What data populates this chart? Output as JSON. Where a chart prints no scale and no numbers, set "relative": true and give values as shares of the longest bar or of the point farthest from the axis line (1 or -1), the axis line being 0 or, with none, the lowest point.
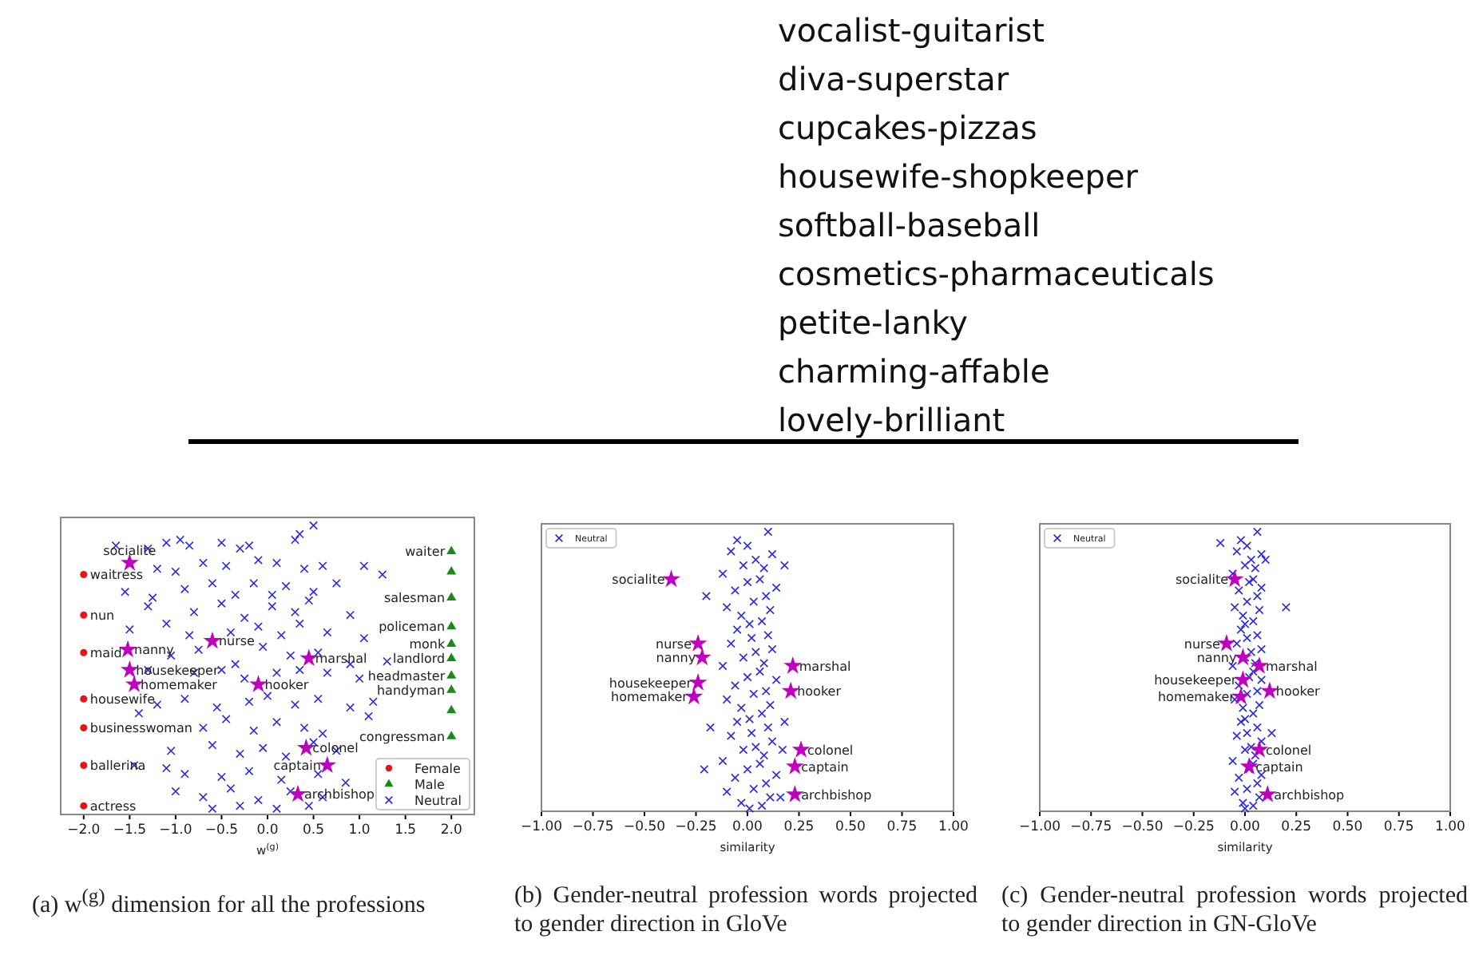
{
  "chart_data": [
    {
      "type": "other",
      "annotations": [
        "vocalist-guitarist",
        "diva-superstar",
        "cupcakes-pizzas",
        "housewife-shopkeeper",
        "softball-baseball",
        "cosmetics-pharmaceuticals",
        "petite-lanky",
        "charming-affable",
        "lovely-brilliant"
      ]
    },
    {
      "type": "scatter",
      "relative": true,
      "xlabel": "w$^{(g)}$",
      "xlim": [
        -2.25,
        2.25
      ],
      "xticks": [
        {
          "value": -2,
          "label": "−2.0"
        },
        {
          "value": -1.5,
          "label": "−1.5"
        },
        {
          "value": -1,
          "label": "−1.0"
        },
        {
          "value": -0.5,
          "label": "−0.5"
        },
        {
          "value": 0,
          "label": "0.0"
        },
        {
          "value": 0.5,
          "label": "0.5"
        },
        {
          "value": 1,
          "label": "1.0"
        },
        {
          "value": 1.5,
          "label": "1.5"
        },
        {
          "value": 2,
          "label": "2.0"
        }
      ],
      "legend": "bottom right",
      "series": [
        {
          "name": "Female",
          "color": "#e8141a",
          "marker": "circle",
          "x": [
            -2,
            -2,
            -2,
            -2,
            -2,
            -2,
            -2
          ],
          "values": [
            0.83,
            0.69,
            0.56,
            0.4,
            0.3,
            0.17,
            0.03
          ]
        },
        {
          "name": "Male",
          "color": "#1a8a1a",
          "marker": "triangle",
          "x": [
            2,
            2,
            2,
            2,
            2,
            2,
            2,
            2,
            2,
            2
          ],
          "values": [
            0.91,
            0.84,
            0.75,
            0.65,
            0.59,
            0.54,
            0.48,
            0.43,
            0.36,
            0.27
          ]
        },
        {
          "name": "Neutral",
          "color": "#2a2ae0",
          "marker": "cross",
          "x": [
            -1.65,
            -1.3,
            -1.1,
            -0.95,
            -0.85,
            -0.5,
            -0.3,
            -0.2,
            0.35,
            0.5,
            0.3,
            -1.2,
            -1.0,
            -0.7,
            -0.45,
            -0.1,
            0.1,
            0.4,
            0.6,
            1.05,
            1.25,
            -1.55,
            -1.25,
            -0.9,
            -0.6,
            -0.35,
            -0.15,
            0.05,
            0.2,
            0.5,
            0.75,
            -1.3,
            -0.8,
            -0.5,
            -0.25,
            0.05,
            0.3,
            0.45,
            0.9,
            -1.5,
            -1.1,
            -0.85,
            -0.4,
            -0.1,
            0.15,
            0.35,
            0.65,
            1.05,
            -1.05,
            -0.75,
            -0.35,
            -0.05,
            0.25,
            0.55,
            0.9,
            1.3,
            -1.3,
            -0.8,
            -0.5,
            -0.25,
            0.1,
            0.35,
            0.65,
            1.0,
            -1.2,
            -0.9,
            -0.55,
            -0.2,
            0.0,
            0.3,
            0.55,
            0.9,
            1.15,
            -1.4,
            -0.7,
            -0.45,
            -0.15,
            0.1,
            0.4,
            0.6,
            1.1,
            -1.05,
            -0.6,
            -0.3,
            -0.05,
            0.2,
            0.5,
            0.75,
            -1.45,
            -1.1,
            -0.9,
            -0.5,
            -0.2,
            0.15,
            0.55,
            0.85,
            -1.0,
            -0.7,
            -0.4,
            -0.1,
            0.25,
            0.6,
            -0.6,
            -0.3,
            0.1,
            0.45
          ],
          "values": [
            0.93,
            0.92,
            0.94,
            0.95,
            0.93,
            0.94,
            0.92,
            0.93,
            0.97,
            1,
            0.95,
            0.85,
            0.84,
            0.87,
            0.86,
            0.88,
            0.87,
            0.85,
            0.86,
            0.86,
            0.83,
            0.77,
            0.75,
            0.78,
            0.8,
            0.76,
            0.8,
            0.76,
            0.79,
            0.77,
            0.8,
            0.72,
            0.7,
            0.73,
            0.68,
            0.72,
            0.7,
            0.74,
            0.69,
            0.64,
            0.66,
            0.62,
            0.63,
            0.65,
            0.62,
            0.66,
            0.63,
            0.61,
            0.55,
            0.57,
            0.52,
            0.58,
            0.55,
            0.56,
            0.52,
            0.53,
            0.5,
            0.49,
            0.5,
            0.47,
            0.49,
            0.5,
            0.49,
            0.47,
            0.38,
            0.4,
            0.37,
            0.39,
            0.41,
            0.38,
            0.4,
            0.37,
            0.39,
            0.35,
            0.3,
            0.33,
            0.29,
            0.32,
            0.3,
            0.28,
            0.34,
            0.22,
            0.24,
            0.21,
            0.23,
            0.2,
            0.25,
            0.22,
            0.17,
            0.16,
            0.14,
            0.13,
            0.15,
            0.12,
            0.14,
            0.11,
            0.08,
            0.06,
            0.09,
            0.05,
            0.08,
            0.06,
            0.02,
            0.03,
            0.02,
            0.03
          ]
        },
        {
          "color": "#bf00bf",
          "marker": "star",
          "x": [
            -1.5,
            -1.52,
            -0.6,
            -1.5,
            -1.45,
            -0.1,
            0.45,
            0.42,
            0.65,
            0.33
          ],
          "values": [
            0.87,
            0.57,
            0.6,
            0.5,
            0.45,
            0.45,
            0.54,
            0.23,
            0.17,
            0.07
          ]
        }
      ],
      "annotations": [
        {
          "text": "waitress",
          "x": -2,
          "y": 0.83
        },
        {
          "text": "nun",
          "x": -2,
          "y": 0.69
        },
        {
          "text": "maid",
          "x": -2,
          "y": 0.56
        },
        {
          "text": "housewife",
          "x": -2,
          "y": 0.4
        },
        {
          "text": "businesswoman",
          "x": -2,
          "y": 0.3
        },
        {
          "text": "ballerina",
          "x": -2,
          "y": 0.17
        },
        {
          "text": "actress",
          "x": -2,
          "y": 0.03
        },
        {
          "text": "waiter",
          "x": 2,
          "y": 0.91
        },
        {
          "text": "salesman",
          "x": 2,
          "y": 0.75
        },
        {
          "text": "policeman",
          "x": 2,
          "y": 0.65
        },
        {
          "text": "monk",
          "x": 2,
          "y": 0.59
        },
        {
          "text": "landlord",
          "x": 2,
          "y": 0.54
        },
        {
          "text": "headmaster",
          "x": 2,
          "y": 0.48
        },
        {
          "text": "handyman",
          "x": 2,
          "y": 0.43
        },
        {
          "text": "congressman",
          "x": 2,
          "y": 0.27
        },
        {
          "text": "socialite",
          "x": -1.5,
          "y": 0.87
        },
        {
          "text": "nanny",
          "x": -1.52,
          "y": 0.57
        },
        {
          "text": "nurse",
          "x": -0.6,
          "y": 0.6
        },
        {
          "text": "housekeeper",
          "x": -1.5,
          "y": 0.5
        },
        {
          "text": "homemaker",
          "x": -1.45,
          "y": 0.45
        },
        {
          "text": "hooker",
          "x": -0.1,
          "y": 0.45
        },
        {
          "text": "marshal",
          "x": 0.45,
          "y": 0.54
        },
        {
          "text": "colonel",
          "x": 0.42,
          "y": 0.23
        },
        {
          "text": "captain",
          "x": 0.65,
          "y": 0.17
        },
        {
          "text": "archbishop",
          "x": 0.33,
          "y": 0.07
        },
        "(a) w$^{(g)}$ dimension for all the professions"
      ]
    },
    {
      "type": "scatter",
      "relative": true,
      "xlabel": "similarity",
      "xlim": [
        -1,
        1
      ],
      "xticks": [
        {
          "value": -1,
          "label": "−1.00"
        },
        {
          "value": -0.75,
          "label": "−0.75"
        },
        {
          "value": -0.5,
          "label": "−0.50"
        },
        {
          "value": -0.25,
          "label": "−0.25"
        },
        {
          "value": 0,
          "label": "0.00"
        },
        {
          "value": 0.25,
          "label": "0.25"
        },
        {
          "value": 0.5,
          "label": "0.50"
        },
        {
          "value": 0.75,
          "label": "0.75"
        },
        {
          "value": 1,
          "label": "1.00"
        }
      ],
      "legend": "top left",
      "series": [
        {
          "name": "Neutral",
          "color": "#2a2ae0",
          "marker": "cross",
          "x": [
            -0.05,
            0.1,
            0.0,
            -0.08,
            0.12,
            0.04,
            -0.02,
            0.08,
            -0.12,
            0.06,
            0.0,
            0.14,
            -0.06,
            0.09,
            0.03,
            -0.1,
            0.11,
            -0.03,
            0.07,
            0.01,
            -0.05,
            0.1,
            0.02,
            -0.08,
            0.12,
            0.04,
            -0.02,
            0.08,
            -0.12,
            0.06,
            0.0,
            0.14,
            -0.06,
            0.09,
            0.03,
            -0.1,
            0.11,
            -0.03,
            0.07,
            0.01,
            -0.05,
            0.1,
            0.02,
            -0.08,
            0.12,
            0.04,
            -0.02,
            0.08,
            -0.12,
            0.06,
            0.0,
            0.14,
            -0.06,
            0.09,
            0.03,
            -0.1,
            0.11,
            -0.03,
            0.07,
            0.01,
            -0.2,
            -0.18,
            -0.21,
            0.18,
            0.18,
            0.17,
            0.16
          ],
          "values": [
            0.97,
            1,
            0.95,
            0.93,
            0.92,
            0.9,
            0.88,
            0.87,
            0.85,
            0.83,
            0.82,
            0.8,
            0.79,
            0.77,
            0.75,
            0.73,
            0.72,
            0.7,
            0.68,
            0.67,
            0.65,
            0.63,
            0.62,
            0.6,
            0.58,
            0.57,
            0.55,
            0.53,
            0.52,
            0.5,
            0.48,
            0.47,
            0.45,
            0.43,
            0.42,
            0.4,
            0.38,
            0.37,
            0.35,
            0.33,
            0.32,
            0.3,
            0.28,
            0.27,
            0.25,
            0.23,
            0.22,
            0.2,
            0.18,
            0.17,
            0.15,
            0.13,
            0.12,
            0.1,
            0.08,
            0.07,
            0.05,
            0.03,
            0.02,
            0.01,
            0.77,
            0.3,
            0.15,
            0.88,
            0.32,
            0.22,
            0.05
          ]
        },
        {
          "color": "#bf00bf",
          "marker": "star",
          "x": [
            -0.37,
            -0.24,
            -0.22,
            -0.24,
            -0.26,
            0.22,
            0.21,
            0.26,
            0.23,
            0.23
          ],
          "values": [
            0.83,
            0.6,
            0.55,
            0.46,
            0.41,
            0.52,
            0.43,
            0.22,
            0.16,
            0.06
          ]
        }
      ],
      "annotations": [
        {
          "text": "socialite",
          "x": -0.37,
          "y": 0.83
        },
        {
          "text": "nurse",
          "x": -0.24,
          "y": 0.6
        },
        {
          "text": "nanny",
          "x": -0.22,
          "y": 0.55
        },
        {
          "text": "housekeeper",
          "x": -0.24,
          "y": 0.46
        },
        {
          "text": "homemaker",
          "x": -0.26,
          "y": 0.41
        },
        {
          "text": "marshal",
          "x": 0.22,
          "y": 0.52
        },
        {
          "text": "hooker",
          "x": 0.21,
          "y": 0.43
        },
        {
          "text": "colonel",
          "x": 0.26,
          "y": 0.22
        },
        {
          "text": "captain",
          "x": 0.23,
          "y": 0.16
        },
        {
          "text": "archbishop",
          "x": 0.23,
          "y": 0.06
        },
        "(b) Gender-neutral profession words projected to gender direction in GloVe"
      ]
    },
    {
      "type": "scatter",
      "relative": true,
      "xlabel": "similarity",
      "xlim": [
        -1,
        1
      ],
      "xticks": [
        {
          "value": -1,
          "label": "−1.00"
        },
        {
          "value": -0.75,
          "label": "−0.75"
        },
        {
          "value": -0.5,
          "label": "−0.50"
        },
        {
          "value": -0.25,
          "label": "−0.25"
        },
        {
          "value": 0,
          "label": "0.00"
        },
        {
          "value": 0.25,
          "label": "0.25"
        },
        {
          "value": 0.5,
          "label": "0.50"
        },
        {
          "value": 0.75,
          "label": "0.75"
        },
        {
          "value": 1,
          "label": "1.00"
        }
      ],
      "legend": "top left",
      "series": [
        {
          "name": "Neutral",
          "color": "#2a2ae0",
          "marker": "cross",
          "x": [
            -0.02,
            0.06,
            0.01,
            -0.04,
            0.08,
            0.03,
            0.0,
            0.05,
            -0.06,
            0.04,
            0.02,
            0.08,
            -0.03,
            0.06,
            0.01,
            -0.05,
            0.07,
            -0.01,
            0.04,
            0.0,
            -0.02,
            0.06,
            0.01,
            -0.04,
            0.08,
            0.03,
            0.0,
            0.05,
            -0.06,
            0.04,
            0.02,
            0.08,
            -0.03,
            0.06,
            0.01,
            -0.05,
            0.07,
            -0.01,
            0.04,
            0.0,
            -0.02,
            0.06,
            0.01,
            -0.04,
            0.08,
            0.03,
            0.0,
            0.05,
            -0.06,
            0.04,
            0.02,
            0.08,
            -0.03,
            0.06,
            0.01,
            -0.05,
            0.07,
            -0.01,
            0.04,
            0.0,
            0.2,
            0.13,
            -0.12,
            0.1
          ],
          "values": [
            0.97,
            1,
            0.95,
            0.93,
            0.92,
            0.9,
            0.88,
            0.87,
            0.85,
            0.83,
            0.82,
            0.8,
            0.79,
            0.77,
            0.75,
            0.73,
            0.72,
            0.7,
            0.68,
            0.67,
            0.65,
            0.63,
            0.62,
            0.6,
            0.58,
            0.57,
            0.55,
            0.53,
            0.52,
            0.5,
            0.48,
            0.47,
            0.45,
            0.43,
            0.42,
            0.4,
            0.38,
            0.37,
            0.35,
            0.33,
            0.32,
            0.3,
            0.28,
            0.27,
            0.25,
            0.23,
            0.22,
            0.2,
            0.18,
            0.17,
            0.15,
            0.13,
            0.12,
            0.1,
            0.08,
            0.07,
            0.05,
            0.03,
            0.02,
            0.01,
            0.73,
            0.28,
            0.96,
            0.9
          ]
        },
        {
          "color": "#bf00bf",
          "marker": "star",
          "x": [
            -0.05,
            -0.09,
            -0.01,
            0.07,
            -0.01,
            -0.02,
            0.12,
            0.07,
            0.02,
            0.11
          ],
          "values": [
            0.83,
            0.6,
            0.55,
            0.52,
            0.47,
            0.41,
            0.43,
            0.22,
            0.16,
            0.06
          ]
        }
      ],
      "annotations": [
        {
          "text": "socialite",
          "x": -0.05,
          "y": 0.83
        },
        {
          "text": "nurse",
          "x": -0.09,
          "y": 0.6
        },
        {
          "text": "nanny",
          "x": -0.01,
          "y": 0.55
        },
        {
          "text": "marshal",
          "x": 0.07,
          "y": 0.52
        },
        {
          "text": "housekeeper",
          "x": -0.01,
          "y": 0.47
        },
        {
          "text": "homemaker",
          "x": -0.02,
          "y": 0.41
        },
        {
          "text": "hooker",
          "x": 0.12,
          "y": 0.43
        },
        {
          "text": "colonel",
          "x": 0.07,
          "y": 0.22
        },
        {
          "text": "captain",
          "x": 0.02,
          "y": 0.16
        },
        {
          "text": "archbishop",
          "x": 0.11,
          "y": 0.06
        },
        "(c) Gender-neutral profession words projected to gender direction in GN-GloVe"
      ]
    }
  ]
}
